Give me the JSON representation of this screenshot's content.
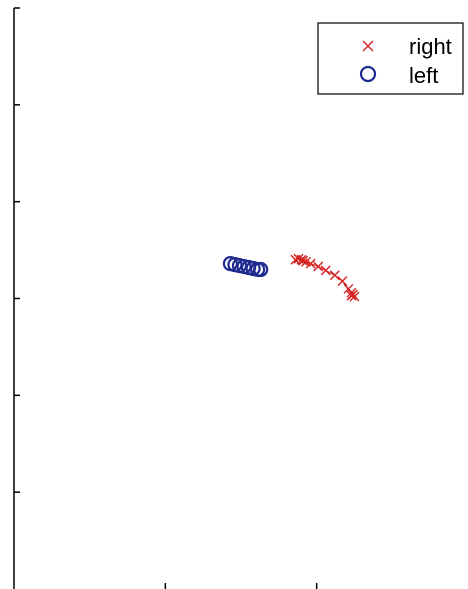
{
  "chart_data": {
    "type": "scatter",
    "title": "",
    "xlabel": "",
    "ylabel": "",
    "legend": {
      "placement": "top-right"
    },
    "grid": false,
    "xlim": [
      0,
      3
    ],
    "ylim": [
      0,
      6
    ],
    "xticks": [
      1,
      2
    ],
    "yticks": [
      1,
      2,
      3,
      4,
      5
    ],
    "series": [
      {
        "name": "right",
        "marker": "x",
        "color": "#d62020",
        "connected": true,
        "points": [
          [
            1.86,
            3.4
          ],
          [
            1.88,
            3.41
          ],
          [
            1.9,
            3.4
          ],
          [
            1.91,
            3.39
          ],
          [
            1.93,
            3.38
          ],
          [
            1.96,
            3.36
          ],
          [
            2.01,
            3.33
          ],
          [
            2.06,
            3.29
          ],
          [
            2.12,
            3.24
          ],
          [
            2.17,
            3.18
          ],
          [
            2.21,
            3.1
          ],
          [
            2.23,
            3.06
          ],
          [
            2.24,
            3.04
          ],
          [
            2.25,
            3.02
          ],
          [
            2.23,
            3.03
          ]
        ]
      },
      {
        "name": "left",
        "marker": "o",
        "color": "#1f2a8f",
        "connected": false,
        "points": [
          [
            1.43,
            3.36
          ],
          [
            1.46,
            3.35
          ],
          [
            1.49,
            3.34
          ],
          [
            1.52,
            3.33
          ],
          [
            1.55,
            3.32
          ],
          [
            1.58,
            3.31
          ],
          [
            1.61,
            3.3
          ],
          [
            1.63,
            3.3
          ]
        ]
      }
    ]
  }
}
